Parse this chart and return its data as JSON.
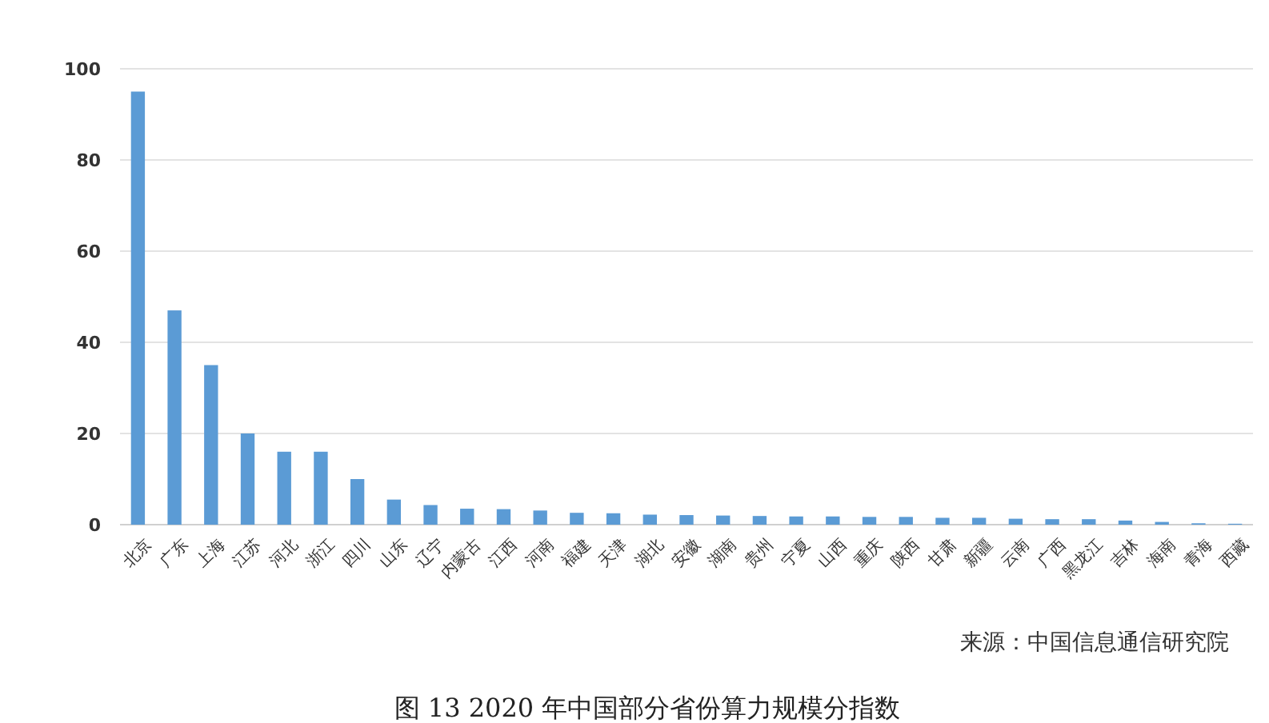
{
  "chart_data": {
    "type": "bar",
    "title": "图 13 2020 年中国部分省份算力规模分指数",
    "categories": [
      "北京",
      "广东",
      "上海",
      "江苏",
      "河北",
      "浙江",
      "四川",
      "山东",
      "辽宁",
      "内蒙古",
      "江西",
      "河南",
      "福建",
      "天津",
      "湖北",
      "安徽",
      "湖南",
      "贵州",
      "宁夏",
      "山西",
      "重庆",
      "陕西",
      "甘肃",
      "新疆",
      "云南",
      "广西",
      "黑龙江",
      "吉林",
      "海南",
      "青海",
      "西藏"
    ],
    "values": [
      95,
      47,
      35,
      20,
      16,
      16,
      10,
      5.5,
      4.3,
      3.5,
      3.4,
      3.1,
      2.6,
      2.5,
      2.2,
      2.1,
      2.0,
      1.9,
      1.8,
      1.8,
      1.7,
      1.7,
      1.5,
      1.5,
      1.3,
      1.2,
      1.2,
      0.9,
      0.6,
      0.3,
      0.2
    ],
    "color": "#5b9bd5",
    "ylim": [
      0,
      100
    ],
    "yticks": [
      0,
      20,
      40,
      60,
      80,
      100
    ],
    "grid": "y",
    "annotations": [
      "来源：中国信息通信研究院"
    ]
  }
}
